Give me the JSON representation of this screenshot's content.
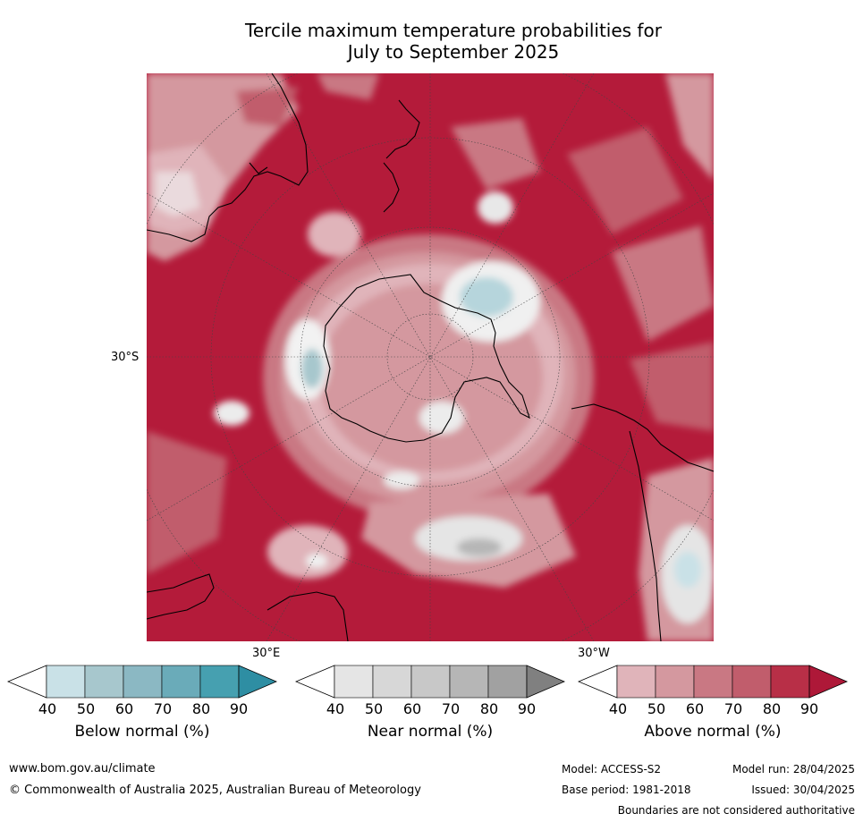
{
  "title": {
    "line1": "Tercile maximum temperature probabilities for",
    "line2": "July to September 2025"
  },
  "map_labels": {
    "lat_30s": "30°S",
    "lon_30e": "30°E",
    "lon_30w": "30°W"
  },
  "colorbars": [
    {
      "id": "below",
      "label": "Below normal (%)",
      "ticks": [
        "40",
        "50",
        "60",
        "70",
        "80",
        "90"
      ],
      "colors": [
        "#ffffff",
        "#c9e1e7",
        "#a7c7cd",
        "#8bb8c3",
        "#6aabb9",
        "#46a0b0",
        "#2e8ea3"
      ]
    },
    {
      "id": "near",
      "label": "Near normal (%)",
      "ticks": [
        "40",
        "50",
        "60",
        "70",
        "80",
        "90"
      ],
      "colors": [
        "#ffffff",
        "#e5e5e5",
        "#d7d7d7",
        "#c8c8c8",
        "#b6b6b6",
        "#a1a1a1",
        "#808080"
      ]
    },
    {
      "id": "above",
      "label": "Above normal (%)",
      "ticks": [
        "40",
        "50",
        "60",
        "70",
        "80",
        "90"
      ],
      "colors": [
        "#ffffff",
        "#e0b4ba",
        "#d4989f",
        "#c97883",
        "#c15d6c",
        "#b82f47",
        "#ae1838"
      ]
    }
  ],
  "footer": {
    "website": "www.bom.gov.au/climate",
    "copyright": "© Commonwealth of Australia 2025, Australian Bureau of Meteorology",
    "model": "Model: ACCESS-S2",
    "base_period": "Base period: 1981-2018",
    "model_run": "Model run: 28/04/2025",
    "issued": "Issued: 30/04/2025",
    "disclaimer": "Boundaries are not considered authoritative"
  },
  "colors": {
    "background_map": "#b41b3a",
    "land_outline": "#000000"
  }
}
